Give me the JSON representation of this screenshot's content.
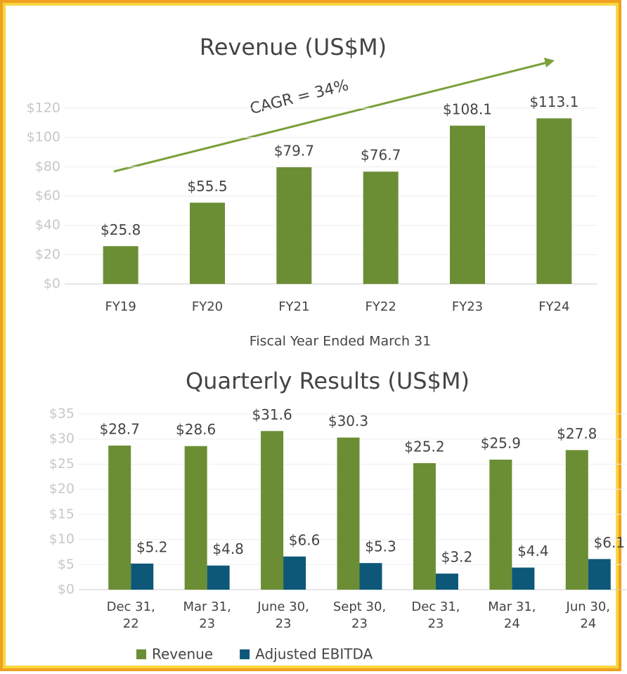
{
  "chart_data": [
    {
      "type": "bar",
      "title": "Revenue (US$M)",
      "x_label": "Fiscal Year Ended March 31",
      "annotation": "CAGR = 34%",
      "categories": [
        "FY19",
        "FY20",
        "FY21",
        "FY22",
        "FY23",
        "FY24"
      ],
      "values": [
        25.8,
        55.5,
        79.7,
        76.7,
        108.1,
        113.1
      ],
      "value_labels": [
        "$25.8",
        "$55.5",
        "$79.7",
        "$76.7",
        "$108.1",
        "$113.1"
      ],
      "color": "#6b8e34",
      "ylim": [
        0,
        120
      ],
      "yticks": [
        {
          "value": 0,
          "label": "$0"
        },
        {
          "value": 20,
          "label": "$20"
        },
        {
          "value": 40,
          "label": "$40"
        },
        {
          "value": 60,
          "label": "$60"
        },
        {
          "value": 80,
          "label": "$80"
        },
        {
          "value": 100,
          "label": "$100"
        },
        {
          "value": 120,
          "label": "$120"
        }
      ],
      "grid": true
    },
    {
      "type": "bar",
      "title": "Quarterly Results (US$M)",
      "categories": [
        "Dec 31,\n22",
        "Mar 31,\n23",
        "June 30,\n23",
        "Sept 30,\n23",
        "Dec 31,\n23",
        "Mar 31,\n24",
        "Jun 30,\n24"
      ],
      "series": [
        {
          "name": "Revenue",
          "color": "#6b8e34",
          "values": [
            28.7,
            28.6,
            31.6,
            30.3,
            25.2,
            25.9,
            27.8
          ],
          "value_labels": [
            "$28.7",
            "$28.6",
            "$31.6",
            "$30.3",
            "$25.2",
            "$25.9",
            "$27.8"
          ]
        },
        {
          "name": "Adjusted EBITDA",
          "color": "#0d5878",
          "values": [
            5.2,
            4.8,
            6.6,
            5.3,
            3.2,
            4.4,
            6.1
          ],
          "value_labels": [
            "$5.2",
            "$4.8",
            "$6.6",
            "$5.3",
            "$3.2",
            "$4.4",
            "$6.1"
          ]
        }
      ],
      "ylim": [
        0,
        35
      ],
      "yticks": [
        {
          "value": 0,
          "label": "$0"
        },
        {
          "value": 5,
          "label": "$5"
        },
        {
          "value": 10,
          "label": "$10"
        },
        {
          "value": 15,
          "label": "$15"
        },
        {
          "value": 20,
          "label": "$20"
        },
        {
          "value": 25,
          "label": "$25"
        },
        {
          "value": 30,
          "label": "$30"
        },
        {
          "value": 35,
          "label": "$35"
        }
      ],
      "grid": true,
      "legend": "bottom"
    }
  ]
}
